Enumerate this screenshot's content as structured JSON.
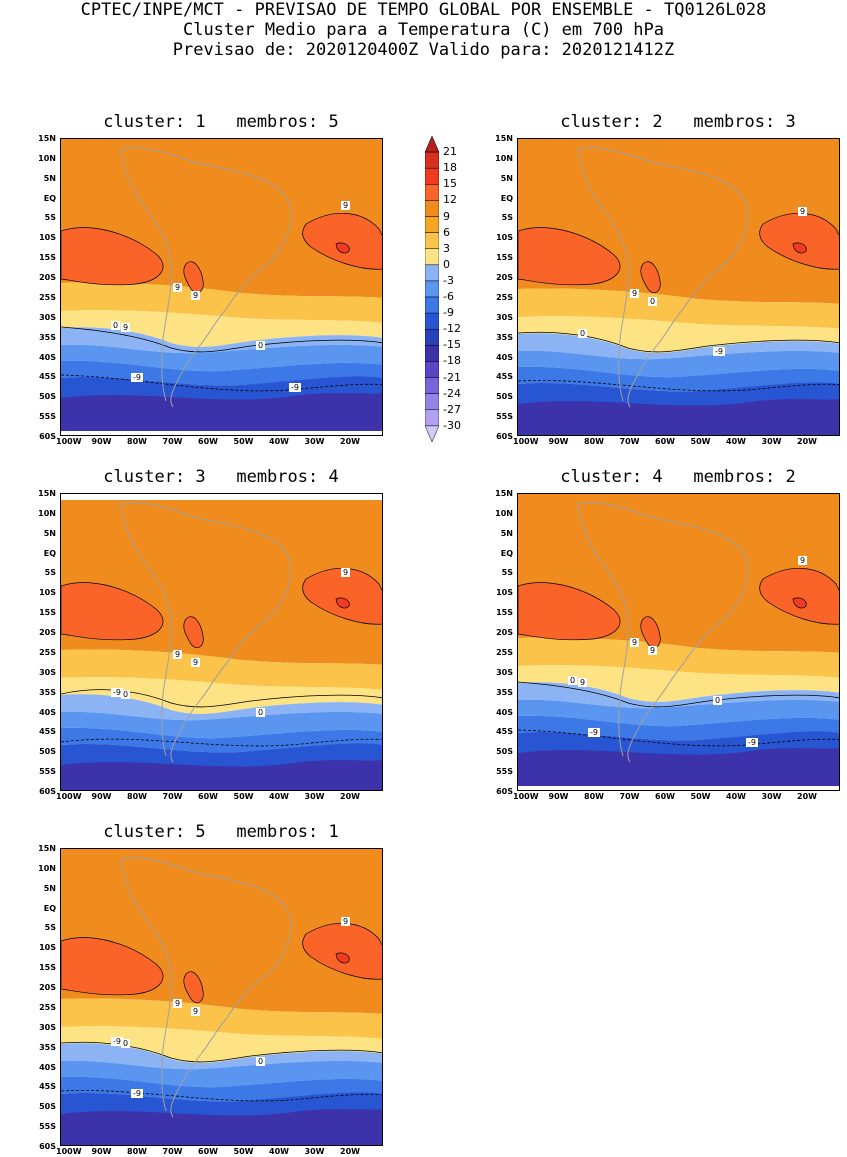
{
  "header": {
    "line1": "CPTEC/INPE/MCT - PREVISAO DE TEMPO GLOBAL POR ENSEMBLE - TQ0126L028",
    "line2": "Cluster Medio para a Temperatura (C) em 700 hPa",
    "line3": "Previsao de: 2020120400Z   Valido para: 2020121412Z"
  },
  "axes": {
    "lat_labels": [
      "15N",
      "10N",
      "5N",
      "EQ",
      "5S",
      "10S",
      "15S",
      "20S",
      "25S",
      "30S",
      "35S",
      "40S",
      "45S",
      "50S",
      "55S",
      "60S"
    ],
    "lon_labels": [
      "100W",
      "90W",
      "80W",
      "70W",
      "60W",
      "50W",
      "40W",
      "30W",
      "20W"
    ]
  },
  "colorbar": {
    "levels": [
      "21",
      "18",
      "15",
      "12",
      "9",
      "6",
      "3",
      "0",
      "-3",
      "-6",
      "-9",
      "-12",
      "-15",
      "-18",
      "-21",
      "-24",
      "-27",
      "-30"
    ],
    "colors": [
      "#b41e1e",
      "#d7301f",
      "#f03b20",
      "#fa6428",
      "#f08c1e",
      "#f5a623",
      "#fbc34a",
      "#fde384",
      "#8cb4f5",
      "#5a96f0",
      "#3c78e6",
      "#2855d2",
      "#2841b9",
      "#3c32aa",
      "#5a46c8",
      "#7864dc",
      "#9682e6",
      "#b4a0f0",
      "#d2c8f5"
    ]
  },
  "panels": [
    {
      "title": "cluster: 1   membros: 5",
      "contour_labels": [
        "9",
        "9",
        "9",
        "9",
        "0",
        "0",
        "-9",
        "-9"
      ]
    },
    {
      "title": "cluster: 2   membros: 3",
      "contour_labels": [
        "9",
        "9",
        "0",
        "0",
        "-9"
      ]
    },
    {
      "title": "cluster: 3   membros: 4",
      "contour_labels": [
        "9",
        "9",
        "9",
        "0",
        "0",
        "-9"
      ]
    },
    {
      "title": "cluster: 4   membros: 2",
      "contour_labels": [
        "9",
        "9",
        "9",
        "9",
        "0",
        "0",
        "-9",
        "-9"
      ]
    },
    {
      "title": "cluster: 5   membros: 1",
      "contour_labels": [
        "9",
        "9",
        "9",
        "0",
        "0",
        "-9",
        "-9"
      ]
    }
  ]
}
